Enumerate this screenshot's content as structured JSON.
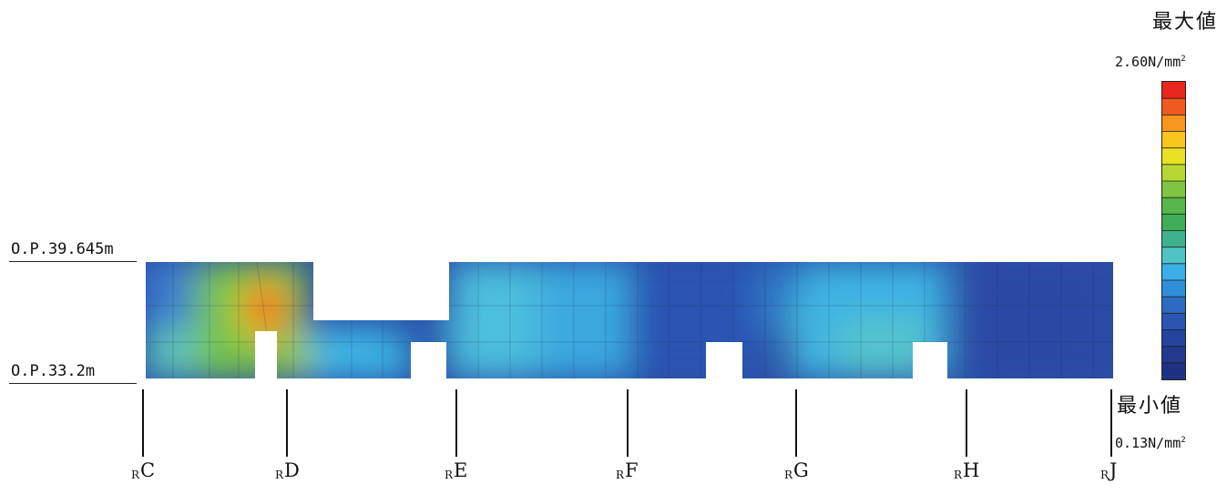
{
  "legend": {
    "max_title": "最大値",
    "max_value": "2.60N/mm",
    "max_unit_sup": "2",
    "min_title": "最小値",
    "min_value": "0.13N/mm",
    "min_unit_sup": "2",
    "colors": [
      "#e8261c",
      "#f15a1f",
      "#f7951e",
      "#fbc61c",
      "#e9e223",
      "#b7d733",
      "#7ec642",
      "#55b848",
      "#3fae58",
      "#3db28c",
      "#4ec4c4",
      "#3aaee6",
      "#2f8fdb",
      "#2b6cc2",
      "#2a55b0",
      "#26449f",
      "#22398f",
      "#1f3184"
    ]
  },
  "elevations": {
    "top": "O.P.39.645m",
    "bottom": "O.P.33.2m"
  },
  "axes": [
    {
      "sub": "R",
      "label": "C"
    },
    {
      "sub": "R",
      "label": "D"
    },
    {
      "sub": "R",
      "label": "E"
    },
    {
      "sub": "R",
      "label": "F"
    },
    {
      "sub": "R",
      "label": "G"
    },
    {
      "sub": "R",
      "label": "H"
    },
    {
      "sub": "R",
      "label": "J"
    }
  ]
}
